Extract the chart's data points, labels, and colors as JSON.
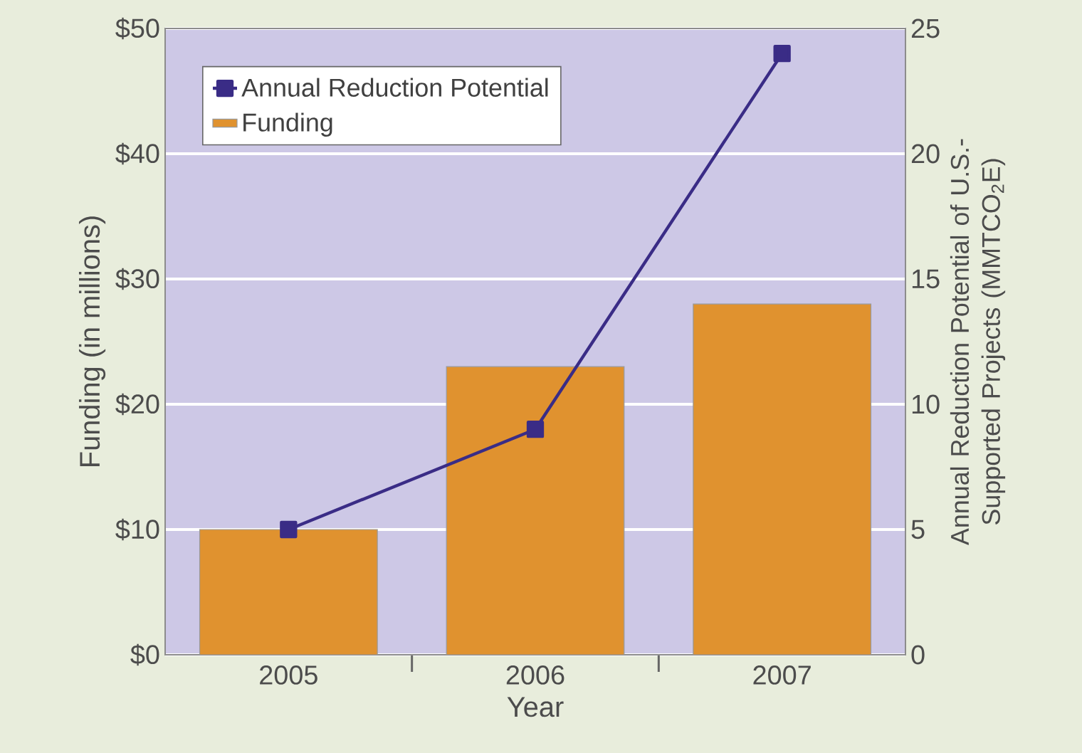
{
  "chart_data": {
    "type": "bar",
    "categories": [
      "2005",
      "2006",
      "2007"
    ],
    "xlabel": "Year",
    "ylabel": "Funding (in millions)",
    "y2label": "Annual Reduction Potential of U.S.-Supported Projects (MMTCO$_{2}$E)",
    "series": [
      {
        "name": "Annual Reduction Potential",
        "type": "line",
        "axis": "y2",
        "color": "#3a2c86",
        "values": [
          5,
          9,
          24
        ],
        "marker": "square",
        "line_style": "solid"
      },
      {
        "name": "Funding",
        "color": "#e0922f",
        "values": [
          10,
          23,
          28
        ]
      }
    ],
    "ylim": [
      0,
      50
    ],
    "yticks": [
      {
        "value": 0,
        "label": "$0"
      },
      {
        "value": 10,
        "label": "$10"
      },
      {
        "value": 20,
        "label": "$20"
      },
      {
        "value": 30,
        "label": "$30"
      },
      {
        "value": 40,
        "label": "$40"
      },
      {
        "value": 50,
        "label": "$50"
      }
    ],
    "y2lim": [
      0,
      25
    ],
    "y2ticks": [
      0,
      5,
      10,
      15,
      20,
      25
    ],
    "grid": "y",
    "legend": "top left"
  }
}
